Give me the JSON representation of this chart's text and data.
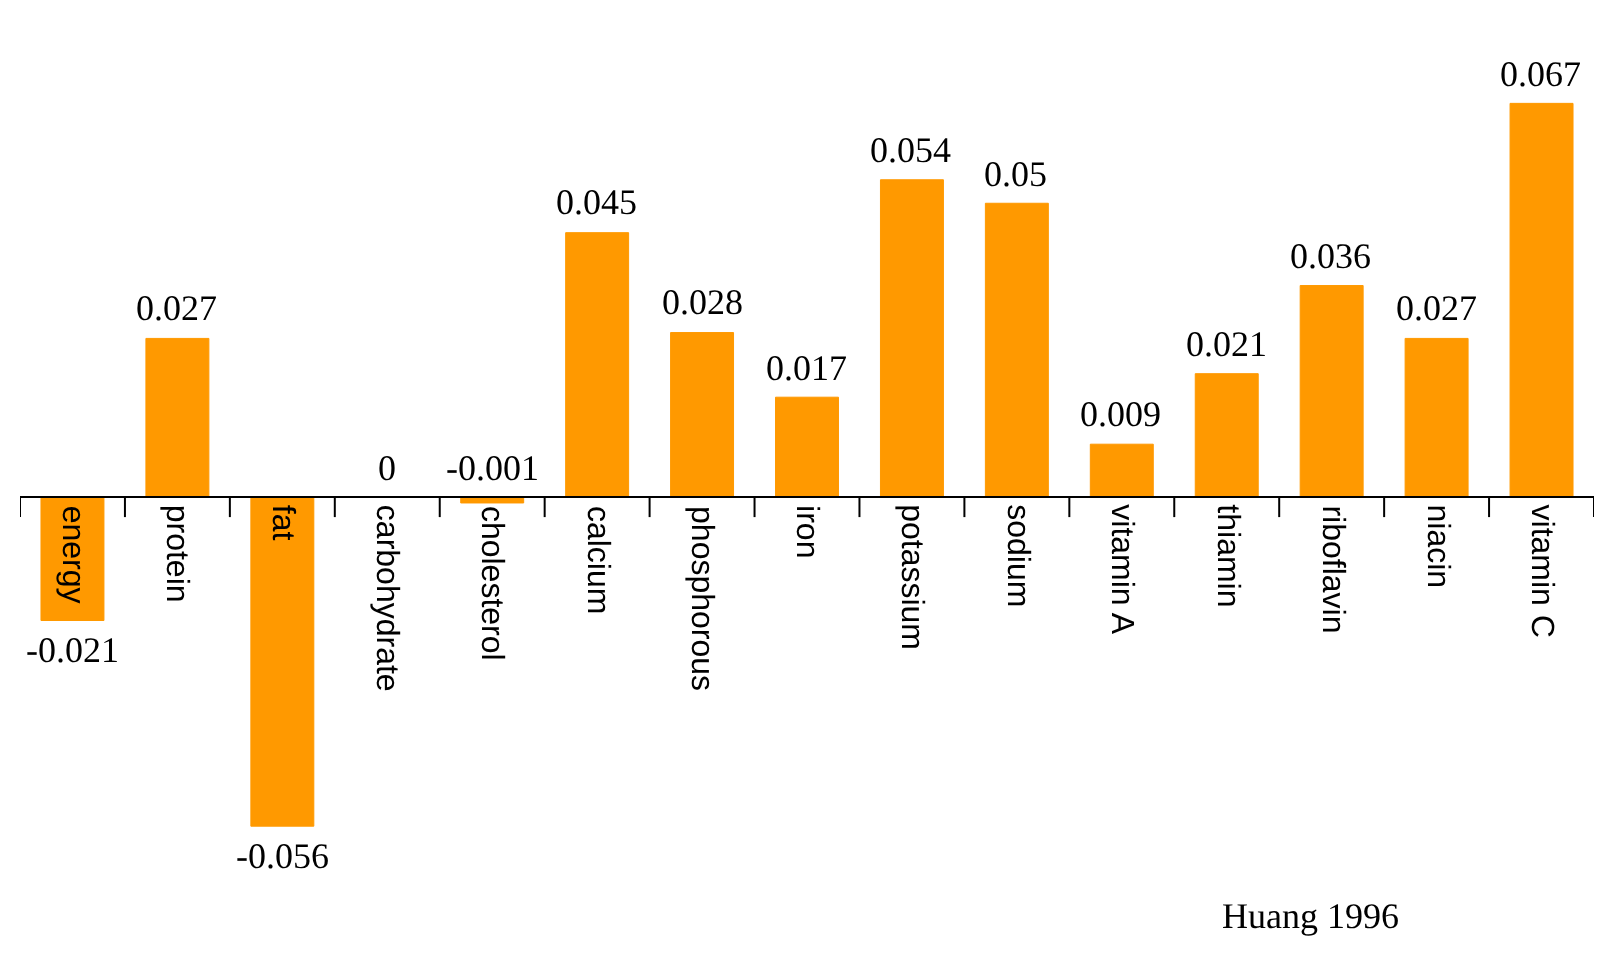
{
  "chart_data": {
    "type": "bar",
    "categories": [
      "energy",
      "protein",
      "fat",
      "carbohydrate",
      "cholesterol",
      "calcium",
      "phosphorous",
      "iron",
      "potassium",
      "sodium",
      "vitamin A",
      "thiamin",
      "riboflavin",
      "niacin",
      "vitamin C"
    ],
    "values": [
      -0.021,
      0.027,
      -0.056,
      0,
      -0.001,
      0.045,
      0.028,
      0.017,
      0.054,
      0.05,
      0.009,
      0.021,
      0.036,
      0.027,
      0.067
    ],
    "color": "#ff9900",
    "data_labels": true,
    "annotations": [
      "Huang 1996"
    ]
  }
}
